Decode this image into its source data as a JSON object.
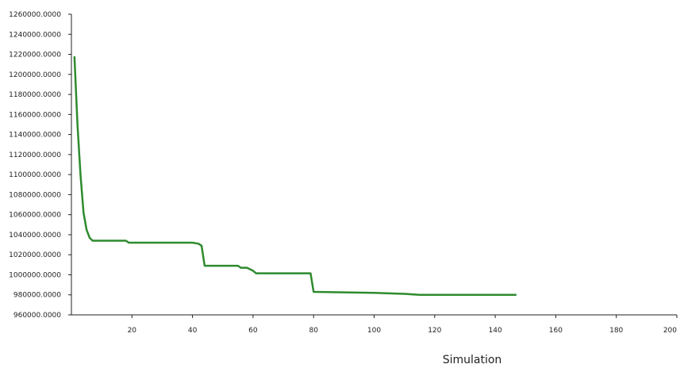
{
  "chart_data": {
    "type": "line",
    "xlabel": "Simulation",
    "ylabel": "",
    "xlim": [
      0,
      200
    ],
    "ylim": [
      960000,
      1260000
    ],
    "x_ticks": [
      20,
      40,
      60,
      80,
      100,
      120,
      140,
      160,
      180,
      200
    ],
    "y_ticks": [
      "960000.0000",
      "980000.0000",
      "1000000.0000",
      "1020000.0000",
      "1040000.0000",
      "1060000.0000",
      "1080000.0000",
      "1100000.0000",
      "1120000.0000",
      "1140000.0000",
      "1160000.0000",
      "1180000.0000",
      "1200000.0000",
      "1220000.0000",
      "1240000.0000",
      "1260000.0000"
    ],
    "grid": false,
    "series": [
      {
        "color": "#2e8b2e",
        "points": [
          [
            1,
            1218000
          ],
          [
            2,
            1150000
          ],
          [
            3,
            1100000
          ],
          [
            4,
            1062000
          ],
          [
            5,
            1045000
          ],
          [
            6,
            1037000
          ],
          [
            7,
            1034000
          ],
          [
            18,
            1034000
          ],
          [
            19,
            1032000
          ],
          [
            40,
            1032000
          ],
          [
            42,
            1031000
          ],
          [
            43,
            1029000
          ],
          [
            44,
            1009000
          ],
          [
            55,
            1009000
          ],
          [
            56,
            1007000
          ],
          [
            58,
            1007000
          ],
          [
            60,
            1004000
          ],
          [
            61,
            1001500
          ],
          [
            79,
            1001500
          ],
          [
            80,
            983000
          ],
          [
            100,
            982000
          ],
          [
            110,
            981000
          ],
          [
            115,
            980000
          ],
          [
            147,
            980000
          ]
        ]
      }
    ]
  }
}
